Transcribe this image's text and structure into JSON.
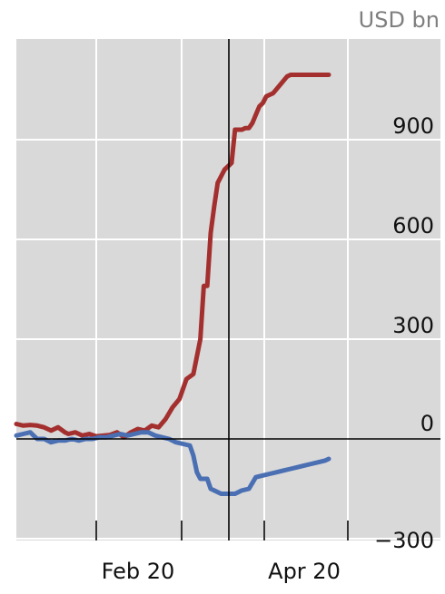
{
  "chart_data": {
    "type": "line",
    "unit_label": "USD bn",
    "x_tick_labels": [
      "Feb 20",
      "Apr 20"
    ],
    "ylim": [
      -300,
      1100
    ],
    "y_ticks": [
      900,
      600,
      300,
      0,
      -300
    ],
    "y_tick_labels": [
      "900",
      "600",
      "300",
      "0",
      "−300"
    ],
    "grid": true,
    "colors": {
      "plot_bg": "#d9d9d9",
      "grid": "#ffffff",
      "red": "#a3302e",
      "blue": "#4a6fb3",
      "axis": "#000000"
    },
    "series": [
      {
        "color": "#a3302e",
        "x": [
          0,
          2,
          4,
          6,
          8,
          10,
          12,
          14,
          15,
          17,
          19,
          21,
          23,
          25,
          27,
          29,
          31,
          33,
          35,
          37,
          39,
          41,
          43,
          45,
          47,
          49,
          51,
          53,
          54,
          55,
          56,
          57,
          58,
          60,
          62,
          63,
          64,
          65,
          66,
          67,
          68,
          69,
          70,
          71,
          72,
          74,
          76,
          78,
          79,
          80,
          81,
          82,
          83,
          84,
          86,
          88,
          90
        ],
        "y": [
          45,
          40,
          42,
          40,
          35,
          25,
          35,
          20,
          15,
          20,
          10,
          15,
          8,
          10,
          12,
          20,
          5,
          20,
          30,
          25,
          40,
          35,
          60,
          95,
          120,
          180,
          195,
          300,
          460,
          460,
          620,
          700,
          770,
          810,
          830,
          930,
          930,
          930,
          935,
          935,
          950,
          975,
          1000,
          1010,
          1030,
          1040,
          1065,
          1090,
          1095,
          1095,
          1095,
          1095,
          1095,
          1095,
          1095,
          1095,
          1095
        ]
      },
      {
        "color": "#4a6fb3",
        "x": [
          0,
          2,
          4,
          6,
          8,
          10,
          12,
          14,
          16,
          18,
          20,
          22,
          24,
          26,
          28,
          30,
          32,
          34,
          36,
          38,
          40,
          42,
          44,
          46,
          48,
          50,
          51,
          52,
          53,
          55,
          56,
          57,
          59,
          61,
          63,
          65,
          67,
          69,
          71,
          73,
          75,
          77,
          79,
          81,
          83,
          85,
          87,
          89,
          90
        ],
        "y": [
          10,
          15,
          20,
          0,
          0,
          -10,
          -5,
          -5,
          0,
          -5,
          0,
          0,
          5,
          5,
          10,
          15,
          10,
          15,
          20,
          20,
          10,
          5,
          0,
          -10,
          -15,
          -20,
          -50,
          -100,
          -120,
          -120,
          -150,
          -155,
          -165,
          -165,
          -165,
          -155,
          -150,
          -115,
          -110,
          -105,
          -100,
          -95,
          -90,
          -85,
          -80,
          -75,
          -70,
          -65,
          -60
        ]
      }
    ]
  }
}
